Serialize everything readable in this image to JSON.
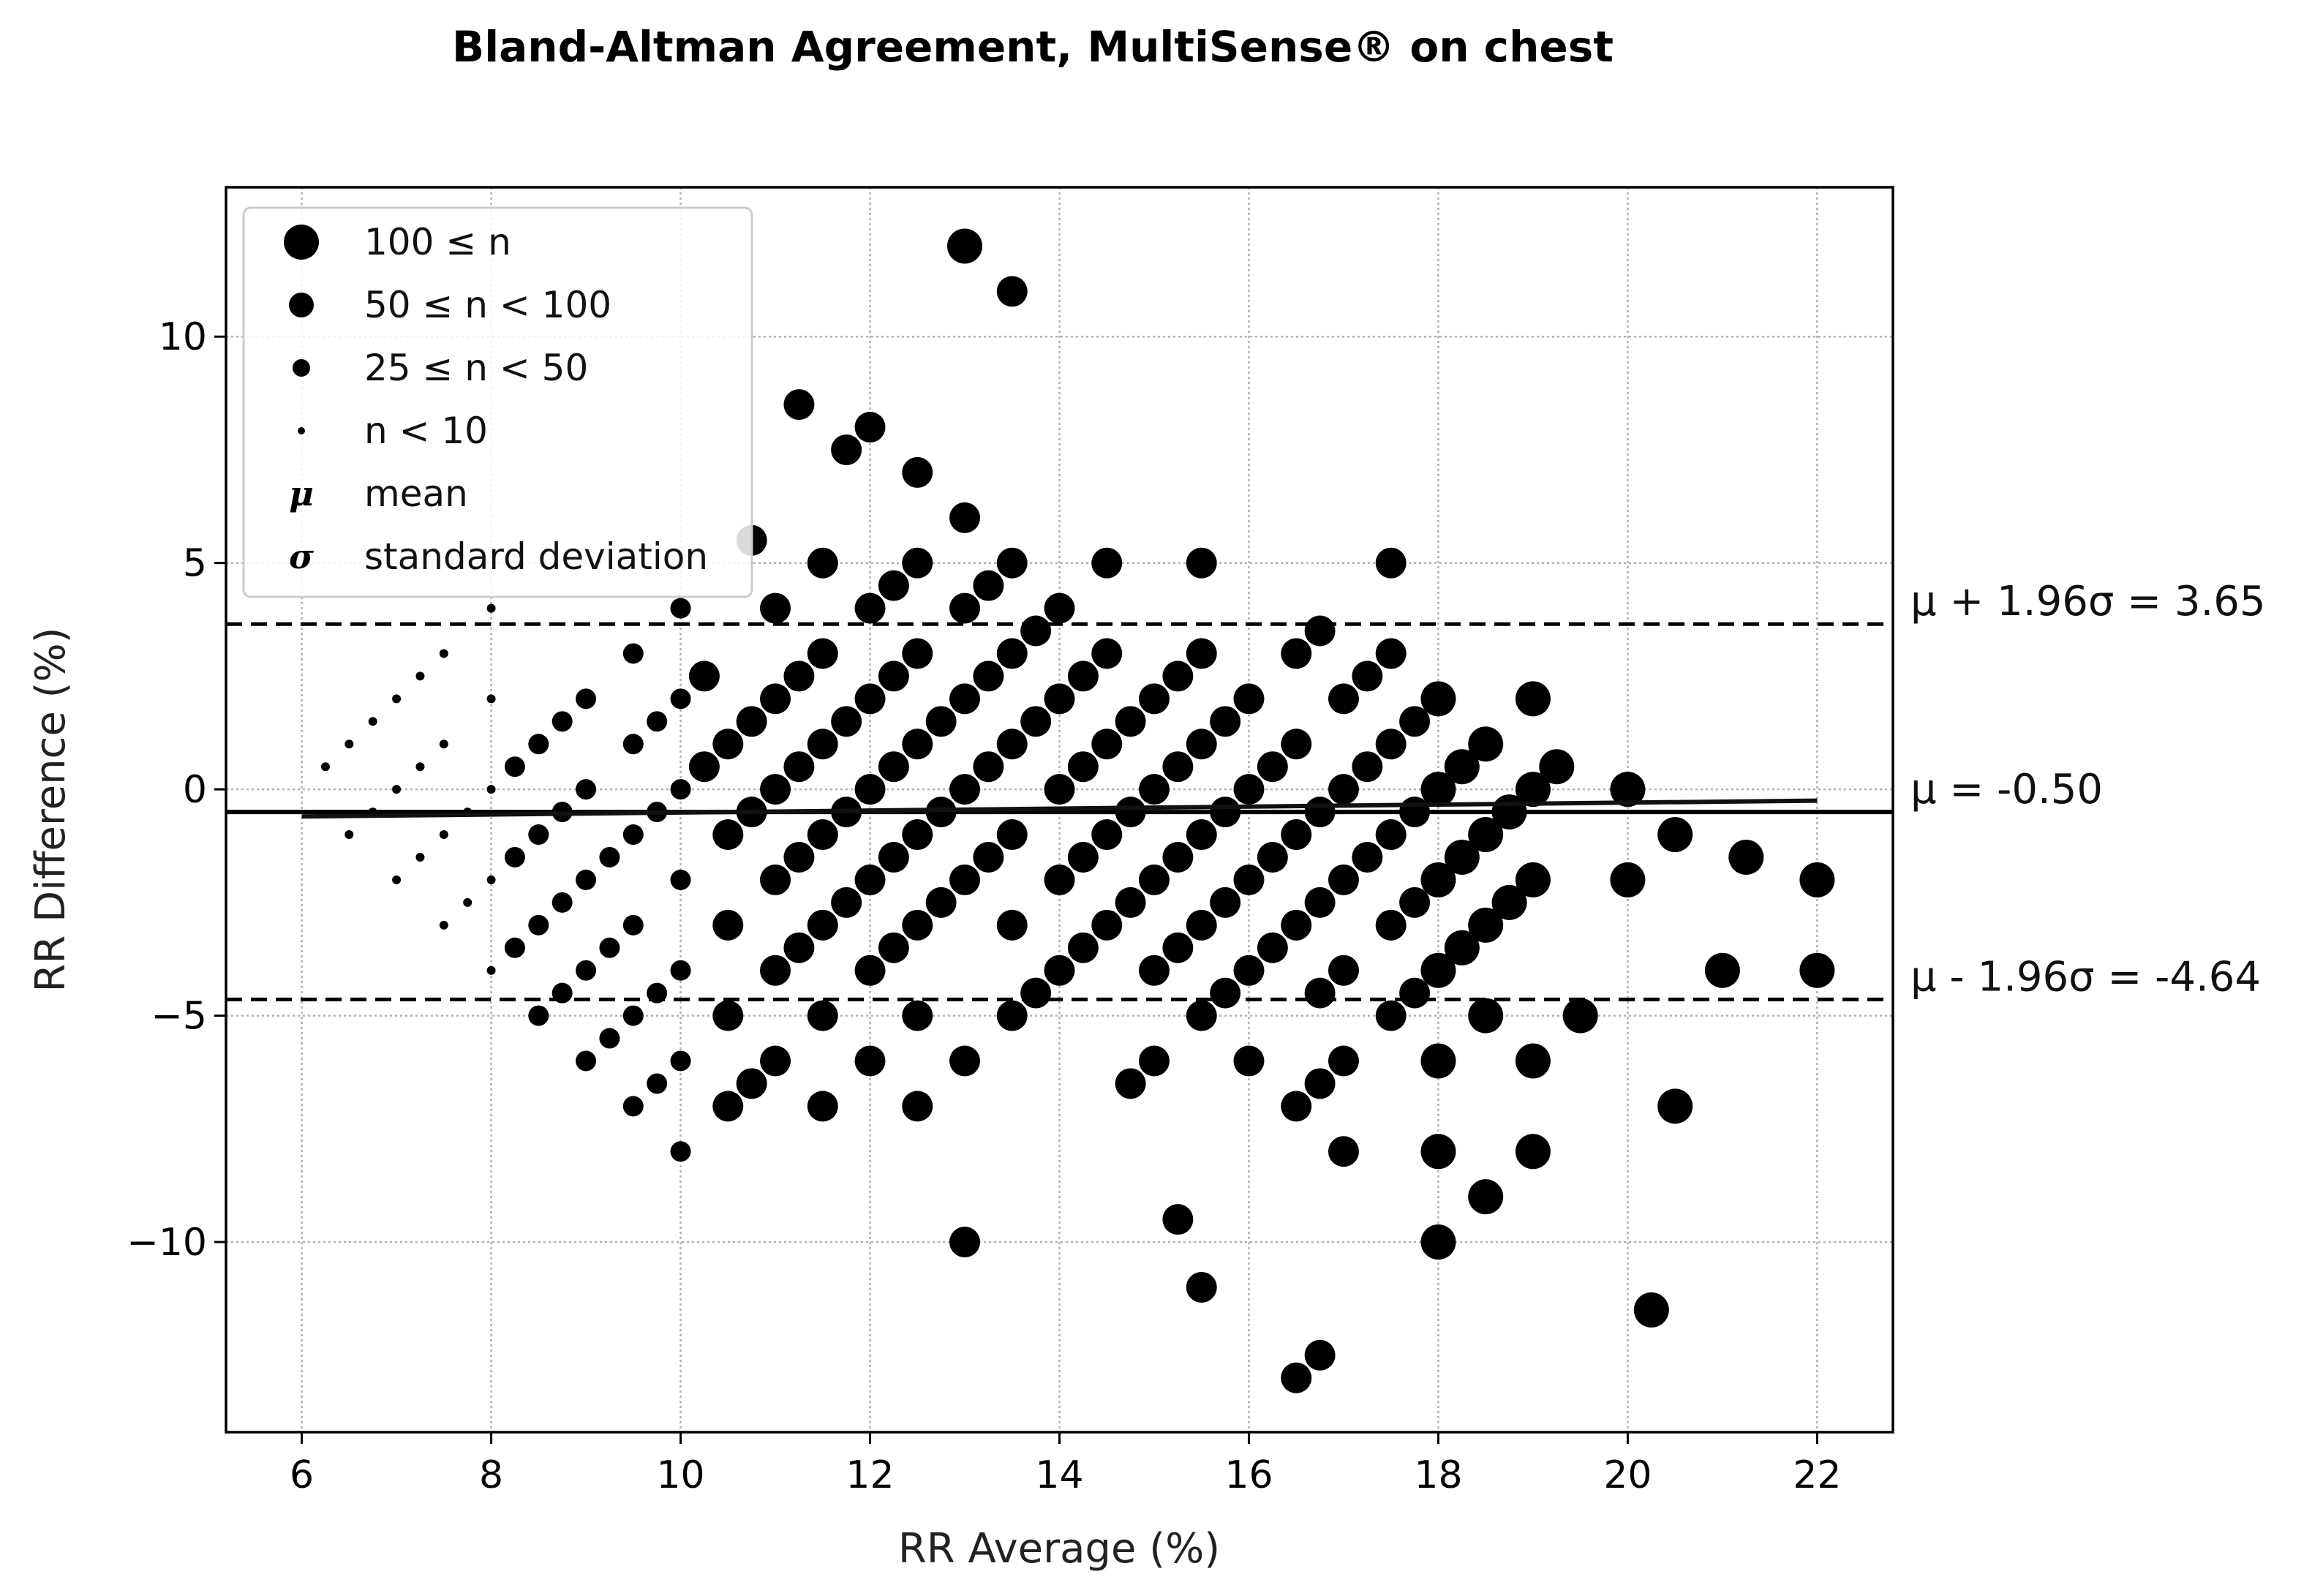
{
  "chart_data": {
    "type": "scatter",
    "title": "Bland-Altman Agreement, MultiSense® on chest",
    "xlabel": "RR Average (%)",
    "ylabel": "RR Difference (%)",
    "xlim": [
      5.2,
      22.8
    ],
    "ylim": [
      -14.2,
      13.3
    ],
    "xticks": [
      6,
      8,
      10,
      12,
      14,
      16,
      18,
      20,
      22
    ],
    "yticks": [
      -10,
      -5,
      0,
      5,
      10
    ],
    "xtick_labels": [
      "6",
      "8",
      "10",
      "12",
      "14",
      "16",
      "18",
      "20",
      "22"
    ],
    "ytick_labels": [
      "−10",
      "−5",
      "0",
      "5",
      "10"
    ],
    "grid": true,
    "legend_position": "upper-left",
    "legend": [
      {
        "symbol": "dot-xl",
        "label": "100 ≤ n"
      },
      {
        "symbol": "dot-l",
        "label": "50 ≤ n < 100"
      },
      {
        "symbol": "dot-m",
        "label": "25 ≤ n < 50"
      },
      {
        "symbol": "dot-s",
        "label": "n < 10"
      },
      {
        "symbol": "μ",
        "label": "mean"
      },
      {
        "symbol": "σ",
        "label": "standard deviation"
      }
    ],
    "reference_lines": [
      {
        "label": "μ + 1.96σ = 3.65",
        "y": 3.65,
        "style": "dashed"
      },
      {
        "label": "μ = -0.50",
        "y": -0.5,
        "style": "solid"
      },
      {
        "label": "μ - 1.96σ = -4.64",
        "y": -4.64,
        "style": "dashed"
      }
    ],
    "trend_line": {
      "x": [
        6,
        22
      ],
      "y": [
        -0.6,
        -0.25
      ]
    },
    "point_size_classes": {
      "s": "n < 10",
      "m": "25 ≤ n < 50",
      "l": "50 ≤ n < 100",
      "xl": "100 ≤ n"
    },
    "points": [
      [
        6.25,
        0.5,
        "s"
      ],
      [
        6.5,
        1,
        "s"
      ],
      [
        6.5,
        -1,
        "s"
      ],
      [
        6.75,
        1.5,
        "s"
      ],
      [
        6.75,
        -0.5,
        "s"
      ],
      [
        7,
        2,
        "s"
      ],
      [
        7,
        0,
        "s"
      ],
      [
        7,
        -2,
        "s"
      ],
      [
        7.25,
        2.5,
        "s"
      ],
      [
        7.25,
        0.5,
        "s"
      ],
      [
        7.25,
        -1.5,
        "s"
      ],
      [
        7.5,
        3,
        "s"
      ],
      [
        7.5,
        1,
        "s"
      ],
      [
        7.5,
        -1,
        "s"
      ],
      [
        7.5,
        -3,
        "s"
      ],
      [
        7.75,
        -0.5,
        "s"
      ],
      [
        7.75,
        -2.5,
        "s"
      ],
      [
        8,
        4,
        "s"
      ],
      [
        8,
        2,
        "s"
      ],
      [
        8,
        0,
        "s"
      ],
      [
        8,
        -2,
        "s"
      ],
      [
        8,
        -4,
        "s"
      ],
      [
        8.25,
        0.5,
        "m"
      ],
      [
        8.25,
        -1.5,
        "m"
      ],
      [
        8.25,
        -3.5,
        "m"
      ],
      [
        8.5,
        1,
        "m"
      ],
      [
        8.5,
        -1,
        "m"
      ],
      [
        8.5,
        -3,
        "m"
      ],
      [
        8.5,
        -5,
        "m"
      ],
      [
        8.75,
        1.5,
        "m"
      ],
      [
        8.75,
        -0.5,
        "m"
      ],
      [
        8.75,
        -2.5,
        "m"
      ],
      [
        8.75,
        -4.5,
        "m"
      ],
      [
        9,
        2,
        "m"
      ],
      [
        9,
        0,
        "m"
      ],
      [
        9,
        -2,
        "m"
      ],
      [
        9,
        -4,
        "m"
      ],
      [
        9,
        -6,
        "m"
      ],
      [
        9.25,
        -1.5,
        "m"
      ],
      [
        9.25,
        -3.5,
        "m"
      ],
      [
        9.25,
        -5.5,
        "m"
      ],
      [
        9.5,
        3,
        "m"
      ],
      [
        9.5,
        1,
        "m"
      ],
      [
        9.5,
        -1,
        "m"
      ],
      [
        9.5,
        -3,
        "m"
      ],
      [
        9.5,
        -5,
        "m"
      ],
      [
        9.5,
        -7,
        "m"
      ],
      [
        9.75,
        1.5,
        "m"
      ],
      [
        9.75,
        -0.5,
        "m"
      ],
      [
        9.75,
        -4.5,
        "m"
      ],
      [
        9.75,
        -6.5,
        "m"
      ],
      [
        10,
        4,
        "m"
      ],
      [
        10,
        2,
        "m"
      ],
      [
        10,
        0,
        "m"
      ],
      [
        10,
        -2,
        "m"
      ],
      [
        10,
        -4,
        "m"
      ],
      [
        10,
        -6,
        "m"
      ],
      [
        10,
        -8,
        "m"
      ],
      [
        10.25,
        2.5,
        "l"
      ],
      [
        10.25,
        0.5,
        "l"
      ],
      [
        10.5,
        1,
        "l"
      ],
      [
        10.5,
        -1,
        "l"
      ],
      [
        10.5,
        -3,
        "l"
      ],
      [
        10.5,
        -5,
        "l"
      ],
      [
        10.5,
        -7,
        "l"
      ],
      [
        10.75,
        5.5,
        "l"
      ],
      [
        10.75,
        1.5,
        "l"
      ],
      [
        10.75,
        -0.5,
        "l"
      ],
      [
        10.75,
        -6.5,
        "l"
      ],
      [
        11,
        4,
        "l"
      ],
      [
        11,
        2,
        "l"
      ],
      [
        11,
        0,
        "l"
      ],
      [
        11,
        -2,
        "l"
      ],
      [
        11,
        -4,
        "l"
      ],
      [
        11,
        -6,
        "l"
      ],
      [
        11.25,
        8.5,
        "l"
      ],
      [
        11.25,
        2.5,
        "l"
      ],
      [
        11.25,
        0.5,
        "l"
      ],
      [
        11.25,
        -1.5,
        "l"
      ],
      [
        11.25,
        -3.5,
        "l"
      ],
      [
        11.5,
        5,
        "l"
      ],
      [
        11.5,
        3,
        "l"
      ],
      [
        11.5,
        1,
        "l"
      ],
      [
        11.5,
        -1,
        "l"
      ],
      [
        11.5,
        -3,
        "l"
      ],
      [
        11.5,
        -5,
        "l"
      ],
      [
        11.5,
        -7,
        "l"
      ],
      [
        11.75,
        7.5,
        "l"
      ],
      [
        11.75,
        1.5,
        "l"
      ],
      [
        11.75,
        -0.5,
        "l"
      ],
      [
        11.75,
        -2.5,
        "l"
      ],
      [
        12,
        8,
        "l"
      ],
      [
        12,
        4,
        "l"
      ],
      [
        12,
        2,
        "l"
      ],
      [
        12,
        0,
        "l"
      ],
      [
        12,
        -2,
        "l"
      ],
      [
        12,
        -4,
        "l"
      ],
      [
        12,
        -6,
        "l"
      ],
      [
        12.25,
        4.5,
        "l"
      ],
      [
        12.25,
        2.5,
        "l"
      ],
      [
        12.25,
        0.5,
        "l"
      ],
      [
        12.25,
        -1.5,
        "l"
      ],
      [
        12.25,
        -3.5,
        "l"
      ],
      [
        12.5,
        7,
        "l"
      ],
      [
        12.5,
        5,
        "l"
      ],
      [
        12.5,
        3,
        "l"
      ],
      [
        12.5,
        1,
        "l"
      ],
      [
        12.5,
        -1,
        "l"
      ],
      [
        12.5,
        -3,
        "l"
      ],
      [
        12.5,
        -5,
        "l"
      ],
      [
        12.5,
        -7,
        "l"
      ],
      [
        12.75,
        1.5,
        "l"
      ],
      [
        12.75,
        -0.5,
        "l"
      ],
      [
        12.75,
        -2.5,
        "l"
      ],
      [
        13,
        12,
        "xl"
      ],
      [
        13,
        6,
        "l"
      ],
      [
        13,
        4,
        "l"
      ],
      [
        13,
        2,
        "l"
      ],
      [
        13,
        0,
        "l"
      ],
      [
        13,
        -2,
        "l"
      ],
      [
        13,
        -6,
        "l"
      ],
      [
        13,
        -10,
        "l"
      ],
      [
        13.25,
        4.5,
        "l"
      ],
      [
        13.25,
        2.5,
        "l"
      ],
      [
        13.25,
        0.5,
        "l"
      ],
      [
        13.25,
        -1.5,
        "l"
      ],
      [
        13.5,
        11,
        "l"
      ],
      [
        13.5,
        5,
        "l"
      ],
      [
        13.5,
        3,
        "l"
      ],
      [
        13.5,
        1,
        "l"
      ],
      [
        13.5,
        -1,
        "l"
      ],
      [
        13.5,
        -3,
        "l"
      ],
      [
        13.5,
        -5,
        "l"
      ],
      [
        13.75,
        3.5,
        "l"
      ],
      [
        13.75,
        1.5,
        "l"
      ],
      [
        13.75,
        -4.5,
        "l"
      ],
      [
        14,
        4,
        "l"
      ],
      [
        14,
        2,
        "l"
      ],
      [
        14,
        0,
        "l"
      ],
      [
        14,
        -2,
        "l"
      ],
      [
        14,
        -4,
        "l"
      ],
      [
        14.25,
        2.5,
        "l"
      ],
      [
        14.25,
        0.5,
        "l"
      ],
      [
        14.25,
        -1.5,
        "l"
      ],
      [
        14.25,
        -3.5,
        "l"
      ],
      [
        14.5,
        5,
        "l"
      ],
      [
        14.5,
        3,
        "l"
      ],
      [
        14.5,
        1,
        "l"
      ],
      [
        14.5,
        -1,
        "l"
      ],
      [
        14.5,
        -3,
        "l"
      ],
      [
        14.75,
        1.5,
        "l"
      ],
      [
        14.75,
        -0.5,
        "l"
      ],
      [
        14.75,
        -2.5,
        "l"
      ],
      [
        14.75,
        -6.5,
        "l"
      ],
      [
        15,
        2,
        "l"
      ],
      [
        15,
        0,
        "l"
      ],
      [
        15,
        -2,
        "l"
      ],
      [
        15,
        -4,
        "l"
      ],
      [
        15,
        -6,
        "l"
      ],
      [
        15.25,
        2.5,
        "l"
      ],
      [
        15.25,
        0.5,
        "l"
      ],
      [
        15.25,
        -1.5,
        "l"
      ],
      [
        15.25,
        -3.5,
        "l"
      ],
      [
        15.25,
        -9.5,
        "l"
      ],
      [
        15.5,
        5,
        "l"
      ],
      [
        15.5,
        3,
        "l"
      ],
      [
        15.5,
        1,
        "l"
      ],
      [
        15.5,
        -1,
        "l"
      ],
      [
        15.5,
        -3,
        "l"
      ],
      [
        15.5,
        -5,
        "l"
      ],
      [
        15.5,
        -11,
        "l"
      ],
      [
        15.75,
        1.5,
        "l"
      ],
      [
        15.75,
        -0.5,
        "l"
      ],
      [
        15.75,
        -2.5,
        "l"
      ],
      [
        15.75,
        -4.5,
        "l"
      ],
      [
        16,
        2,
        "l"
      ],
      [
        16,
        0,
        "l"
      ],
      [
        16,
        -2,
        "l"
      ],
      [
        16,
        -4,
        "l"
      ],
      [
        16,
        -6,
        "l"
      ],
      [
        16.25,
        0.5,
        "l"
      ],
      [
        16.25,
        -1.5,
        "l"
      ],
      [
        16.25,
        -3.5,
        "l"
      ],
      [
        16.5,
        3,
        "l"
      ],
      [
        16.5,
        1,
        "l"
      ],
      [
        16.5,
        -1,
        "l"
      ],
      [
        16.5,
        -3,
        "l"
      ],
      [
        16.5,
        -7,
        "l"
      ],
      [
        16.5,
        -13,
        "l"
      ],
      [
        16.75,
        3.5,
        "l"
      ],
      [
        16.75,
        -0.5,
        "l"
      ],
      [
        16.75,
        -2.5,
        "l"
      ],
      [
        16.75,
        -4.5,
        "l"
      ],
      [
        16.75,
        -6.5,
        "l"
      ],
      [
        16.75,
        -12.5,
        "l"
      ],
      [
        17,
        2,
        "l"
      ],
      [
        17,
        0,
        "l"
      ],
      [
        17,
        -2,
        "l"
      ],
      [
        17,
        -4,
        "l"
      ],
      [
        17,
        -6,
        "l"
      ],
      [
        17,
        -8,
        "l"
      ],
      [
        17.25,
        2.5,
        "l"
      ],
      [
        17.25,
        0.5,
        "l"
      ],
      [
        17.25,
        -1.5,
        "l"
      ],
      [
        17.5,
        5,
        "l"
      ],
      [
        17.5,
        3,
        "l"
      ],
      [
        17.5,
        1,
        "l"
      ],
      [
        17.5,
        -1,
        "l"
      ],
      [
        17.5,
        -3,
        "l"
      ],
      [
        17.5,
        -5,
        "l"
      ],
      [
        17.75,
        1.5,
        "l"
      ],
      [
        17.75,
        -0.5,
        "l"
      ],
      [
        17.75,
        -2.5,
        "l"
      ],
      [
        17.75,
        -4.5,
        "l"
      ],
      [
        18,
        2,
        "xl"
      ],
      [
        18,
        0,
        "xl"
      ],
      [
        18,
        -2,
        "xl"
      ],
      [
        18,
        -4,
        "xl"
      ],
      [
        18,
        -6,
        "xl"
      ],
      [
        18,
        -8,
        "xl"
      ],
      [
        18,
        -10,
        "xl"
      ],
      [
        18.25,
        0.5,
        "xl"
      ],
      [
        18.25,
        -1.5,
        "xl"
      ],
      [
        18.25,
        -3.5,
        "xl"
      ],
      [
        18.5,
        1,
        "xl"
      ],
      [
        18.5,
        -1,
        "xl"
      ],
      [
        18.5,
        -3,
        "xl"
      ],
      [
        18.5,
        -5,
        "xl"
      ],
      [
        18.5,
        -9,
        "xl"
      ],
      [
        18.75,
        -0.5,
        "xl"
      ],
      [
        18.75,
        -2.5,
        "xl"
      ],
      [
        19,
        2,
        "xl"
      ],
      [
        19,
        0,
        "xl"
      ],
      [
        19,
        -2,
        "xl"
      ],
      [
        19,
        -6,
        "xl"
      ],
      [
        19,
        -8,
        "xl"
      ],
      [
        19.25,
        0.5,
        "xl"
      ],
      [
        19.5,
        -5,
        "xl"
      ],
      [
        20,
        0,
        "xl"
      ],
      [
        20,
        -2,
        "xl"
      ],
      [
        20.25,
        -11.5,
        "xl"
      ],
      [
        20.5,
        -1,
        "xl"
      ],
      [
        20.5,
        -7,
        "xl"
      ],
      [
        21,
        -4,
        "xl"
      ],
      [
        21.25,
        -1.5,
        "xl"
      ],
      [
        22,
        -2,
        "xl"
      ],
      [
        22,
        -4,
        "xl"
      ]
    ]
  }
}
